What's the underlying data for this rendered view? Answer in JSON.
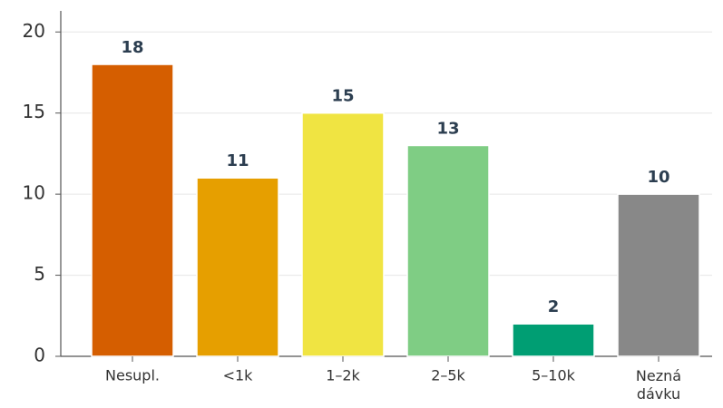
{
  "chart_data": {
    "type": "bar",
    "categories": [
      "Nesupl.",
      "<1k",
      "1–2k",
      "2–5k",
      "5–10k",
      "Nezná dávku"
    ],
    "values": [
      18,
      11,
      15,
      13,
      2,
      10
    ],
    "colors": [
      "#d55e00",
      "#e69f00",
      "#f0e442",
      "#7fcd84",
      "#009e73",
      "#888888"
    ],
    "ylim": [
      0,
      21.3
    ],
    "yticks": [
      0,
      5,
      10,
      15,
      20
    ],
    "grid": true
  }
}
